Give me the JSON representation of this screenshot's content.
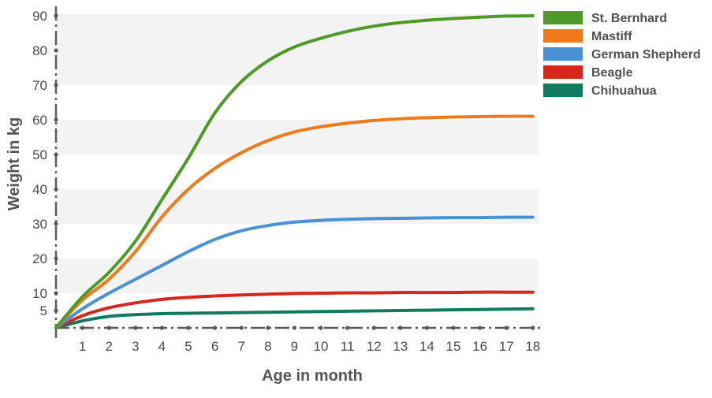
{
  "chart_data": {
    "type": "line",
    "xlabel": "Age in month",
    "ylabel": "Weight in kg",
    "xlim": [
      0,
      18
    ],
    "ylim": [
      0,
      90
    ],
    "x_ticks": [
      "1",
      "2",
      "3",
      "4",
      "5",
      "6",
      "7",
      "8",
      "9",
      "10",
      "11",
      "12",
      "13",
      "14",
      "15",
      "16",
      "17",
      "18"
    ],
    "y_ticks": [
      "5",
      "10",
      "20",
      "30",
      "40",
      "50",
      "60",
      "70",
      "80",
      "90"
    ],
    "grid": "alternating horizontal bands",
    "legend_position": "top-right",
    "x": [
      0,
      1,
      2,
      3,
      4,
      5,
      6,
      7,
      8,
      9,
      10,
      11,
      12,
      13,
      14,
      15,
      16,
      17,
      18
    ],
    "series": [
      {
        "name": "St. Bernhard",
        "color": "#4e9a26",
        "values": [
          0,
          9,
          16,
          25,
          37,
          49,
          62,
          71,
          77,
          81,
          83.5,
          85.5,
          87,
          88,
          88.7,
          89.2,
          89.6,
          89.9,
          90
        ]
      },
      {
        "name": "Mastiff",
        "color": "#f07a1a",
        "values": [
          0,
          8,
          14,
          22,
          32,
          40,
          46,
          50.5,
          54,
          56.5,
          58,
          59,
          59.8,
          60.3,
          60.6,
          60.8,
          60.9,
          61,
          61
        ]
      },
      {
        "name": "German Shepherd",
        "color": "#4a90d4",
        "values": [
          0,
          5.5,
          10,
          14,
          18,
          22,
          25.5,
          28,
          29.5,
          30.5,
          31,
          31.3,
          31.5,
          31.6,
          31.7,
          31.8,
          31.8,
          31.9,
          31.9
        ]
      },
      {
        "name": "Beagle",
        "color": "#d9261c",
        "values": [
          0,
          3.5,
          5.8,
          7.2,
          8.2,
          8.8,
          9.2,
          9.5,
          9.7,
          9.9,
          10,
          10.1,
          10.1,
          10.2,
          10.2,
          10.2,
          10.3,
          10.3,
          10.3
        ]
      },
      {
        "name": "Chihuahua",
        "color": "#0f7a60",
        "values": [
          0,
          2,
          3.3,
          3.8,
          4.1,
          4.2,
          4.3,
          4.4,
          4.5,
          4.6,
          4.7,
          4.8,
          4.9,
          5.0,
          5.1,
          5.2,
          5.3,
          5.4,
          5.5
        ]
      }
    ]
  }
}
